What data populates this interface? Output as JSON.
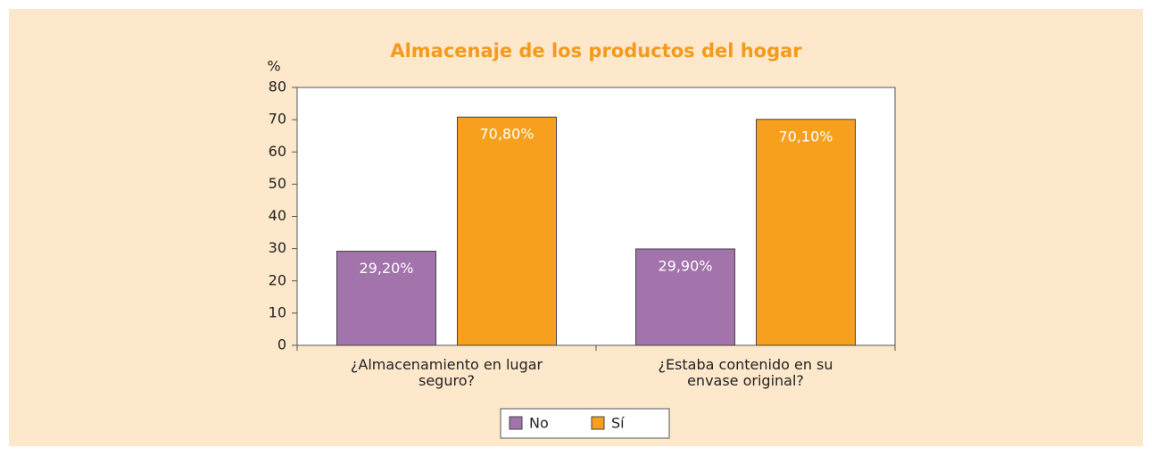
{
  "chart_data": {
    "type": "bar",
    "title": "Almacenaje de los productos del hogar",
    "y_label": "%",
    "categories": [
      "¿Almacenamiento en lugar seguro?",
      "¿Estaba contenido en su envase original?"
    ],
    "series": [
      {
        "name": "No",
        "color": "#a373ab",
        "values": [
          29.2,
          29.9
        ],
        "value_labels": [
          "29,20%",
          "29,90%"
        ]
      },
      {
        "name": "Sí",
        "color": "#f6a01e",
        "values": [
          70.8,
          70.1
        ],
        "value_labels": [
          "70,80%",
          "70,10%"
        ]
      }
    ],
    "ylim": [
      0,
      80
    ],
    "yticks": [
      0,
      10,
      20,
      30,
      40,
      50,
      60,
      70,
      80
    ],
    "grid": false,
    "legend": "bottom"
  }
}
